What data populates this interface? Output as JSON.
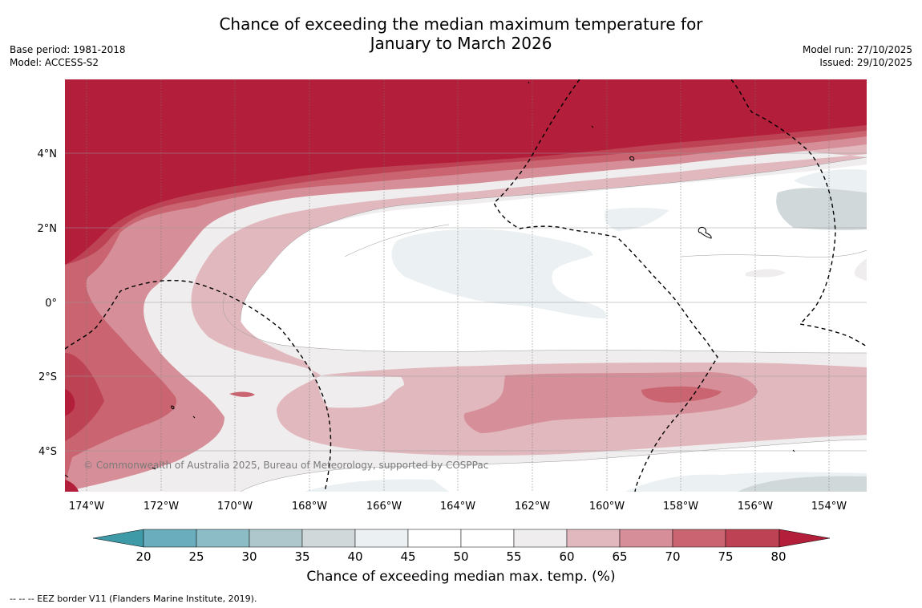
{
  "title_line1": "Chance of exceeding the median maximum temperature for",
  "title_line2": "January to March 2026",
  "base_period": "Base period: 1981-2018",
  "model": "Model: ACCESS-S2",
  "model_run": "Model run: 27/10/2025",
  "issued": "Issued: 29/10/2025",
  "copyright": "© Commonwealth of Australia 2025, Bureau of Meteorology, supported by COSPPac",
  "lon_labels": [
    "174°W",
    "172°W",
    "170°W",
    "168°W",
    "166°W",
    "164°W",
    "162°W",
    "160°W",
    "158°W",
    "156°W",
    "154°W"
  ],
  "lat_labels": [
    "4°N",
    "2°N",
    "0°",
    "2°S",
    "4°S"
  ],
  "colorbar": {
    "ticks": [
      "20",
      "25",
      "30",
      "35",
      "40",
      "45",
      "50",
      "55",
      "60",
      "65",
      "70",
      "75",
      "80"
    ],
    "label": "Chance of exceeding median max. temp. (%)",
    "colors": {
      "below20": "#3f9aa8",
      "20-25": "#6aaebd",
      "25-30": "#8cbcc6",
      "30-35": "#adc7cc",
      "35-40": "#d0d8d9",
      "40-45": "#ebf0f2",
      "45-50": "#ffffff",
      "50-55": "#ffffff",
      "55-60": "#efeded",
      "60-65": "#e1b8be",
      "65-70": "#d68e98",
      "70-75": "#c96470",
      "75-80": "#bd4254",
      "above80": "#b31e3a"
    }
  },
  "footnote": "--  --  -- EEZ border V11 (Flanders Marine Institute, 2019)."
}
